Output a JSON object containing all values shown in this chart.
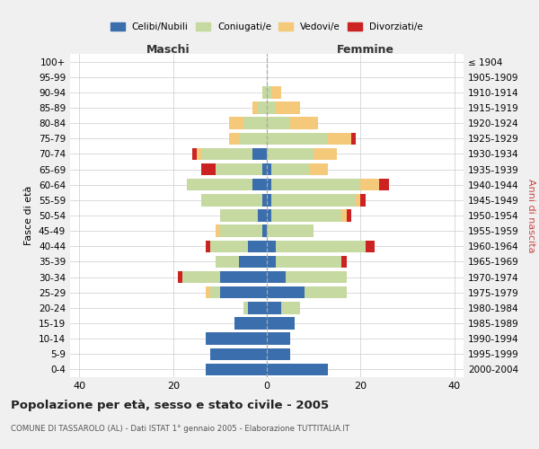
{
  "age_groups": [
    "0-4",
    "5-9",
    "10-14",
    "15-19",
    "20-24",
    "25-29",
    "30-34",
    "35-39",
    "40-44",
    "45-49",
    "50-54",
    "55-59",
    "60-64",
    "65-69",
    "70-74",
    "75-79",
    "80-84",
    "85-89",
    "90-94",
    "95-99",
    "100+"
  ],
  "birth_years": [
    "2000-2004",
    "1995-1999",
    "1990-1994",
    "1985-1989",
    "1980-1984",
    "1975-1979",
    "1970-1974",
    "1965-1969",
    "1960-1964",
    "1955-1959",
    "1950-1954",
    "1945-1949",
    "1940-1944",
    "1935-1939",
    "1930-1934",
    "1925-1929",
    "1920-1924",
    "1915-1919",
    "1910-1914",
    "1905-1909",
    "≤ 1904"
  ],
  "maschi": {
    "celibi": [
      13,
      12,
      13,
      7,
      4,
      10,
      10,
      6,
      4,
      1,
      2,
      1,
      3,
      1,
      3,
      0,
      0,
      0,
      0,
      0,
      0
    ],
    "coniugati": [
      0,
      0,
      0,
      0,
      1,
      2,
      8,
      5,
      8,
      9,
      8,
      13,
      14,
      10,
      11,
      6,
      5,
      2,
      1,
      0,
      0
    ],
    "vedovi": [
      0,
      0,
      0,
      0,
      0,
      1,
      0,
      0,
      0,
      1,
      0,
      0,
      0,
      0,
      1,
      2,
      3,
      1,
      0,
      0,
      0
    ],
    "divorziati": [
      0,
      0,
      0,
      0,
      0,
      0,
      1,
      0,
      1,
      0,
      0,
      0,
      0,
      3,
      1,
      0,
      0,
      0,
      0,
      0,
      0
    ]
  },
  "femmine": {
    "nubili": [
      13,
      5,
      5,
      6,
      3,
      8,
      4,
      2,
      2,
      0,
      1,
      1,
      1,
      1,
      0,
      0,
      0,
      0,
      0,
      0,
      0
    ],
    "coniugate": [
      0,
      0,
      0,
      0,
      4,
      9,
      13,
      14,
      19,
      10,
      15,
      18,
      19,
      8,
      10,
      13,
      5,
      2,
      1,
      0,
      0
    ],
    "vedove": [
      0,
      0,
      0,
      0,
      0,
      0,
      0,
      0,
      0,
      0,
      1,
      1,
      4,
      4,
      5,
      5,
      6,
      5,
      2,
      0,
      0
    ],
    "divorziate": [
      0,
      0,
      0,
      0,
      0,
      0,
      0,
      1,
      2,
      0,
      1,
      1,
      2,
      0,
      0,
      1,
      0,
      0,
      0,
      0,
      0
    ]
  },
  "colors": {
    "celibi": "#3a6eac",
    "coniugati": "#c5d9a0",
    "vedovi": "#f5c97a",
    "divorziati": "#cc2222"
  },
  "xlim": 42,
  "title": "Popolazione per età, sesso e stato civile - 2005",
  "subtitle": "COMUNE DI TASSAROLO (AL) - Dati ISTAT 1° gennaio 2005 - Elaborazione TUTTITALIA.IT",
  "ylabel_left": "Fasce di età",
  "ylabel_right": "Anni di nascita",
  "xlabel_maschi": "Maschi",
  "xlabel_femmine": "Femmine",
  "legend_labels": [
    "Celibi/Nubili",
    "Coniugati/e",
    "Vedovi/e",
    "Divorziati/e"
  ],
  "bg_color": "#f0f0f0",
  "plot_bg_color": "#ffffff"
}
